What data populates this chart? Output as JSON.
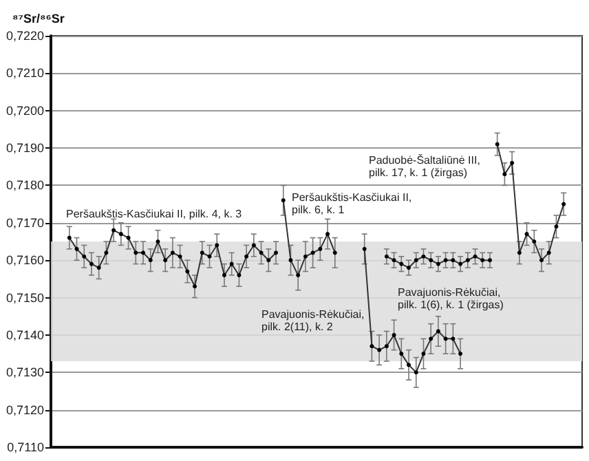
{
  "chart_data": {
    "type": "line",
    "ylabel": "⁸⁷Sr/⁸⁶Sr",
    "categories": [
      null,
      null,
      null,
      null,
      null,
      null,
      null,
      null,
      null,
      null,
      null,
      null,
      null,
      null,
      null,
      null,
      null,
      null,
      null,
      null,
      null,
      null,
      null,
      null,
      null,
      null,
      null,
      null,
      null,
      null,
      null,
      null,
      null,
      null,
      null,
      null,
      null,
      null,
      null,
      null,
      null,
      null,
      null,
      null,
      null,
      null,
      null,
      null,
      null,
      null,
      null,
      null,
      null,
      null,
      null,
      null,
      null,
      null,
      null,
      null,
      null,
      null,
      null,
      null,
      null,
      null,
      null,
      null,
      null,
      null,
      null,
      null
    ],
    "series": [
      {
        "name": "Peršaukštis-Kasčiukai II, pilk. 4, k. 3",
        "color": "#000000",
        "values": [
          null,
          null,
          0.7166,
          0.7163,
          0.7161,
          0.7159,
          0.7158,
          0.7162,
          0.7168,
          0.7167,
          0.7166,
          0.7162,
          0.7162,
          0.716,
          0.7165,
          0.716,
          0.7162,
          0.7161,
          0.7157,
          0.7153,
          0.7162,
          0.7161,
          0.7164,
          0.7156,
          0.7159,
          0.7156,
          0.7161,
          0.7164,
          0.7162,
          0.716,
          0.7162,
          null,
          null,
          null,
          null,
          null,
          null,
          null,
          null,
          null,
          null,
          null,
          null,
          null,
          null,
          null,
          null,
          null,
          null,
          null,
          null,
          null,
          null,
          null,
          null,
          null,
          null,
          null,
          null,
          null,
          null,
          null,
          null,
          null,
          null,
          null,
          null,
          null,
          null,
          null,
          null,
          null
        ],
        "errors": [
          null,
          null,
          0.0003,
          0.0003,
          0.0003,
          0.0003,
          0.0003,
          0.0003,
          0.0003,
          0.0003,
          0.0003,
          0.0003,
          0.0003,
          0.0003,
          0.0003,
          0.0003,
          0.0004,
          0.0003,
          0.0003,
          0.0003,
          0.0003,
          0.0003,
          0.0003,
          0.0003,
          0.0003,
          0.0003,
          0.0003,
          0.0003,
          0.0003,
          0.0003,
          0.0003,
          null,
          null,
          null,
          null,
          null,
          null,
          null,
          null,
          null,
          null,
          null,
          null,
          null,
          null,
          null,
          null,
          null,
          null,
          null,
          null,
          null,
          null,
          null,
          null,
          null,
          null,
          null,
          null,
          null,
          null,
          null,
          null,
          null,
          null,
          null,
          null,
          null,
          null,
          null,
          null,
          null
        ]
      },
      {
        "name": "Peršaukštis-Kasčiukai II, pilk. 6, k. 1",
        "color": "#000000",
        "values": [
          null,
          null,
          null,
          null,
          null,
          null,
          null,
          null,
          null,
          null,
          null,
          null,
          null,
          null,
          null,
          null,
          null,
          null,
          null,
          null,
          null,
          null,
          null,
          null,
          null,
          null,
          null,
          null,
          null,
          null,
          null,
          0.7176,
          0.716,
          0.7156,
          0.7161,
          0.7162,
          0.7163,
          0.7167,
          0.7162,
          null,
          null,
          null,
          null,
          null,
          null,
          null,
          null,
          null,
          null,
          null,
          null,
          null,
          null,
          null,
          null,
          null,
          null,
          null,
          null,
          null,
          null,
          null,
          null,
          null,
          null,
          null,
          null,
          null,
          null,
          null,
          null,
          null
        ],
        "errors": [
          null,
          null,
          null,
          null,
          null,
          null,
          null,
          null,
          null,
          null,
          null,
          null,
          null,
          null,
          null,
          null,
          null,
          null,
          null,
          null,
          null,
          null,
          null,
          null,
          null,
          null,
          null,
          null,
          null,
          null,
          null,
          0.0004,
          0.0004,
          0.0004,
          0.0004,
          0.0004,
          0.0003,
          0.0004,
          0.0004,
          null,
          null,
          null,
          null,
          null,
          null,
          null,
          null,
          null,
          null,
          null,
          null,
          null,
          null,
          null,
          null,
          null,
          null,
          null,
          null,
          null,
          null,
          null,
          null,
          null,
          null,
          null,
          null,
          null,
          null,
          null,
          null,
          null
        ]
      },
      {
        "name": "Pavajuonis-Rėkučiai, pilk. 2(11), k. 2",
        "color": "#000000",
        "values": [
          null,
          null,
          null,
          null,
          null,
          null,
          null,
          null,
          null,
          null,
          null,
          null,
          null,
          null,
          null,
          null,
          null,
          null,
          null,
          null,
          null,
          null,
          null,
          null,
          null,
          null,
          null,
          null,
          null,
          null,
          null,
          null,
          null,
          null,
          null,
          null,
          null,
          null,
          null,
          null,
          null,
          null,
          0.7163,
          0.7137,
          0.7136,
          0.7137,
          0.714,
          0.7135,
          0.7132,
          0.713,
          0.7135,
          0.7139,
          0.7141,
          0.7139,
          0.7139,
          0.7135,
          null,
          null,
          null,
          null,
          null,
          null,
          null,
          null,
          null,
          null,
          null,
          null,
          null,
          null,
          null,
          null
        ],
        "errors": [
          null,
          null,
          null,
          null,
          null,
          null,
          null,
          null,
          null,
          null,
          null,
          null,
          null,
          null,
          null,
          null,
          null,
          null,
          null,
          null,
          null,
          null,
          null,
          null,
          null,
          null,
          null,
          null,
          null,
          null,
          null,
          null,
          null,
          null,
          null,
          null,
          null,
          null,
          null,
          null,
          null,
          null,
          0.0004,
          0.0004,
          0.0004,
          0.0004,
          0.0004,
          0.0004,
          0.0004,
          0.0004,
          0.0004,
          0.0004,
          0.0004,
          0.0004,
          0.0004,
          0.0004,
          null,
          null,
          null,
          null,
          null,
          null,
          null,
          null,
          null,
          null,
          null,
          null,
          null,
          null,
          null,
          null
        ]
      },
      {
        "name": "Pavajuonis-Rėkučiai, pilk. 1(6), k. 1 (žirgas)",
        "color": "#000000",
        "values": [
          null,
          null,
          null,
          null,
          null,
          null,
          null,
          null,
          null,
          null,
          null,
          null,
          null,
          null,
          null,
          null,
          null,
          null,
          null,
          null,
          null,
          null,
          null,
          null,
          null,
          null,
          null,
          null,
          null,
          null,
          null,
          null,
          null,
          null,
          null,
          null,
          null,
          null,
          null,
          null,
          null,
          null,
          null,
          null,
          null,
          0.7161,
          0.716,
          0.7159,
          0.7158,
          0.716,
          0.7161,
          0.716,
          0.7159,
          0.716,
          0.716,
          0.7159,
          0.716,
          0.7161,
          0.716,
          0.716,
          null,
          null,
          null,
          null,
          null,
          null,
          null,
          null,
          null,
          null,
          null,
          null
        ],
        "errors": [
          null,
          null,
          null,
          null,
          null,
          null,
          null,
          null,
          null,
          null,
          null,
          null,
          null,
          null,
          null,
          null,
          null,
          null,
          null,
          null,
          null,
          null,
          null,
          null,
          null,
          null,
          null,
          null,
          null,
          null,
          null,
          null,
          null,
          null,
          null,
          null,
          null,
          null,
          null,
          null,
          null,
          null,
          null,
          null,
          null,
          0.0002,
          0.0002,
          0.0002,
          0.0002,
          0.0002,
          0.0002,
          0.0002,
          0.0002,
          0.0002,
          0.0002,
          0.0002,
          0.0002,
          0.0002,
          0.0002,
          0.0002,
          null,
          null,
          null,
          null,
          null,
          null,
          null,
          null,
          null,
          null,
          null,
          null
        ]
      },
      {
        "name": "Paduobė-Šaltaliūnė III, pilk. 17, k. 1 (žirgas)",
        "color": "#000000",
        "values": [
          null,
          null,
          null,
          null,
          null,
          null,
          null,
          null,
          null,
          null,
          null,
          null,
          null,
          null,
          null,
          null,
          null,
          null,
          null,
          null,
          null,
          null,
          null,
          null,
          null,
          null,
          null,
          null,
          null,
          null,
          null,
          null,
          null,
          null,
          null,
          null,
          null,
          null,
          null,
          null,
          null,
          null,
          null,
          null,
          null,
          null,
          null,
          null,
          null,
          null,
          null,
          null,
          null,
          null,
          null,
          null,
          null,
          null,
          null,
          null,
          0.7191,
          0.7183,
          0.7186,
          0.7162,
          0.7167,
          0.7165,
          0.716,
          0.7162,
          0.7169,
          0.7175,
          null,
          null
        ],
        "errors": [
          null,
          null,
          null,
          null,
          null,
          null,
          null,
          null,
          null,
          null,
          null,
          null,
          null,
          null,
          null,
          null,
          null,
          null,
          null,
          null,
          null,
          null,
          null,
          null,
          null,
          null,
          null,
          null,
          null,
          null,
          null,
          null,
          null,
          null,
          null,
          null,
          null,
          null,
          null,
          null,
          null,
          null,
          null,
          null,
          null,
          null,
          null,
          null,
          null,
          null,
          null,
          null,
          null,
          null,
          null,
          null,
          null,
          null,
          null,
          null,
          0.0003,
          0.0003,
          0.0003,
          0.0003,
          0.0003,
          0.0003,
          0.0003,
          0.0003,
          0.0003,
          0.0003,
          null,
          null
        ]
      }
    ],
    "ylim": [
      0.711,
      0.722
    ],
    "yticks": [
      {
        "value": 0.711,
        "label": "0,7110"
      },
      {
        "value": 0.712,
        "label": "0,7120"
      },
      {
        "value": 0.713,
        "label": "0,7130"
      },
      {
        "value": 0.714,
        "label": "0,7140"
      },
      {
        "value": 0.715,
        "label": "0,7150"
      },
      {
        "value": 0.716,
        "label": "0,7160"
      },
      {
        "value": 0.717,
        "label": "0,7170"
      },
      {
        "value": 0.718,
        "label": "0,7180"
      },
      {
        "value": 0.719,
        "label": "0,7190"
      },
      {
        "value": 0.72,
        "label": "0,7200"
      },
      {
        "value": 0.721,
        "label": "0,7210"
      },
      {
        "value": 0.722,
        "label": "0,7220"
      }
    ],
    "bands": [
      {
        "axis": "y",
        "from": 0.7133,
        "to": 0.7165,
        "color": "#dddddd"
      }
    ],
    "grid": "y",
    "tick_labels": "y",
    "legend": false,
    "marker": "circle",
    "line_style": "solid"
  }
}
